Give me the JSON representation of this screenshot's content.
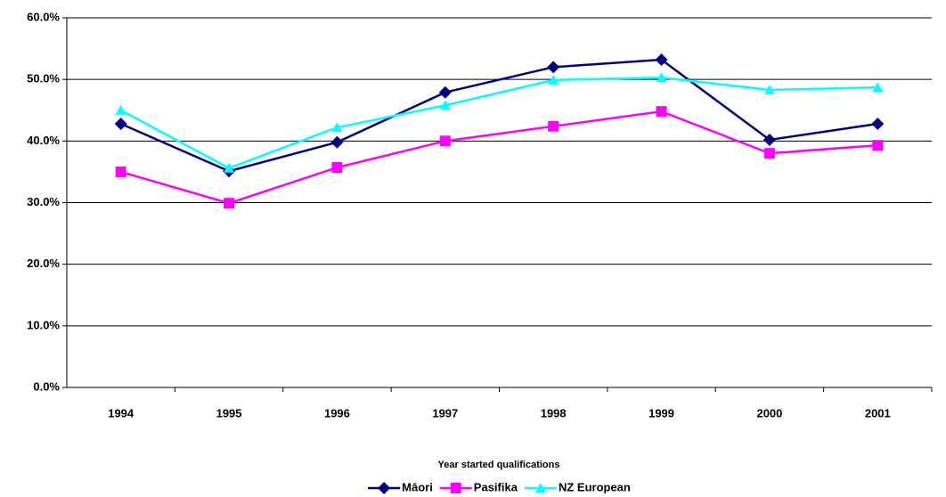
{
  "chart_data": {
    "type": "line",
    "x_label": "Year started qualifications",
    "categories": [
      "1994",
      "1995",
      "1996",
      "1997",
      "1998",
      "1999",
      "2000",
      "2001"
    ],
    "series": [
      {
        "name": "Māori",
        "color": "#000080",
        "marker": "diamond",
        "values": [
          42.8,
          35.1,
          39.8,
          47.9,
          52.0,
          53.2,
          40.2,
          42.8
        ]
      },
      {
        "name": "Pasifika",
        "color": "#ff00ff",
        "marker": "square",
        "values": [
          35.0,
          29.9,
          35.7,
          40.0,
          42.4,
          44.8,
          38.0,
          39.3
        ]
      },
      {
        "name": "NZ European",
        "color": "#00ffff",
        "marker": "triangle",
        "values": [
          45.0,
          35.6,
          42.2,
          45.8,
          49.9,
          50.3,
          48.3,
          48.7
        ]
      }
    ],
    "ylim": [
      0,
      60
    ],
    "yticks": [
      {
        "value": 0,
        "label": "0.0%"
      },
      {
        "value": 10,
        "label": "10.0%"
      },
      {
        "value": 20,
        "label": "20.0%"
      },
      {
        "value": 30,
        "label": "30.0%"
      },
      {
        "value": 40,
        "label": "40.0%"
      },
      {
        "value": 50,
        "label": "50.0%"
      },
      {
        "value": 60,
        "label": "60.0%"
      }
    ],
    "grid": true,
    "legend": "bottom"
  }
}
